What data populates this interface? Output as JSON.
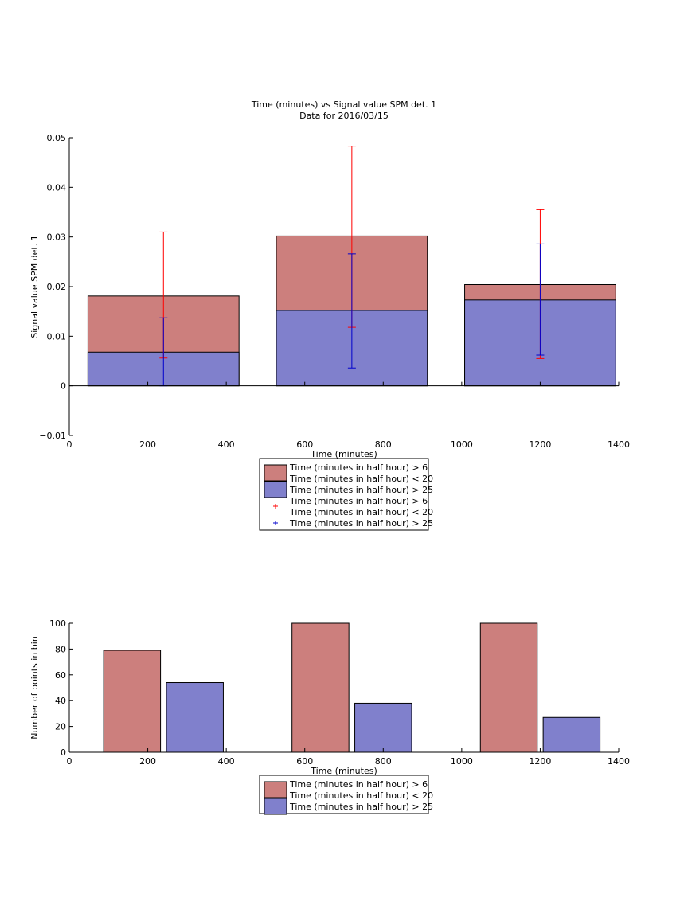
{
  "colors": {
    "bar_red": "#cc7f7d",
    "bar_blue": "#8080cc",
    "err_red": "#ff0000",
    "err_blue": "#0000cc",
    "axis": "#000000"
  },
  "chart_data": [
    {
      "type": "bar",
      "title": "Time (minutes) vs Signal value SPM det. 1",
      "subtitle": "Data for 2016/03/15",
      "xlabel": "Time (minutes)",
      "ylabel": "Signal value SPM det. 1",
      "xlim": [
        0,
        1400
      ],
      "ylim": [
        -0.01,
        0.05
      ],
      "xticks": [
        "0",
        "200",
        "400",
        "600",
        "800",
        "1000",
        "1200",
        "1400"
      ],
      "yticks": [
        "−0.01",
        "0",
        "0.01",
        "0.02",
        "0.03",
        "0.04",
        "0.05"
      ],
      "x": [
        240,
        720,
        1200
      ],
      "bar_width": 385,
      "series": [
        {
          "name": "Time (minutes in half hour) > 6\nTime (minutes in half hour) < 20",
          "values": [
            0.0181,
            0.0302,
            0.0204
          ],
          "color": "bar_red",
          "lower": [
            0.0056,
            0.0118,
            0.0055
          ],
          "upper": [
            0.031,
            0.0483,
            0.0355
          ]
        },
        {
          "name": "Time (minutes in half hour) > 25",
          "values": [
            0.0068,
            0.0152,
            0.0173
          ],
          "color": "bar_blue",
          "lower": [
            0.0,
            0.0036,
            0.0062
          ],
          "upper": [
            0.0137,
            0.0266,
            0.0286
          ]
        }
      ],
      "legend": {
        "placement": "below-axes",
        "entries": [
          {
            "kind": "patch",
            "color": "bar_red",
            "lines": [
              "Time (minutes in half hour) > 6",
              "Time (minutes in half hour) < 20"
            ]
          },
          {
            "kind": "patch",
            "color": "bar_blue",
            "lines": [
              "Time (minutes in half hour) > 25"
            ]
          },
          {
            "kind": "marker",
            "color": "err_red",
            "lines": [
              "Time (minutes in half hour) > 6",
              "Time (minutes in half hour) < 20"
            ]
          },
          {
            "kind": "marker",
            "color": "err_blue",
            "lines": [
              "Time (minutes in half hour) > 25"
            ]
          }
        ]
      },
      "grid": false
    },
    {
      "type": "bar",
      "title": "",
      "xlabel": "Time (minutes)",
      "ylabel": "Number of points in bin",
      "xlim": [
        0,
        1400
      ],
      "ylim": [
        0,
        100
      ],
      "xticks": [
        "0",
        "200",
        "400",
        "600",
        "800",
        "1000",
        "1200",
        "1400"
      ],
      "yticks": [
        "0",
        "20",
        "40",
        "60",
        "80",
        "100"
      ],
      "x": [
        240,
        720,
        1200
      ],
      "series": [
        {
          "name": "Time (minutes in half hour) > 6\nTime (minutes in half hour) < 20",
          "values": [
            79,
            100,
            100
          ],
          "color": "bar_red",
          "x_center": [
            160,
            640,
            1120
          ],
          "width": 145
        },
        {
          "name": "Time (minutes in half hour) > 25",
          "values": [
            54,
            38,
            27
          ],
          "color": "bar_blue",
          "x_center": [
            320,
            800,
            1280
          ],
          "width": 145
        }
      ],
      "legend": {
        "placement": "below-axes",
        "entries": [
          {
            "kind": "patch",
            "color": "bar_red",
            "lines": [
              "Time (minutes in half hour) > 6",
              "Time (minutes in half hour) < 20"
            ]
          },
          {
            "kind": "patch",
            "color": "bar_blue",
            "lines": [
              "Time (minutes in half hour) > 25"
            ]
          }
        ]
      },
      "grid": false
    }
  ]
}
